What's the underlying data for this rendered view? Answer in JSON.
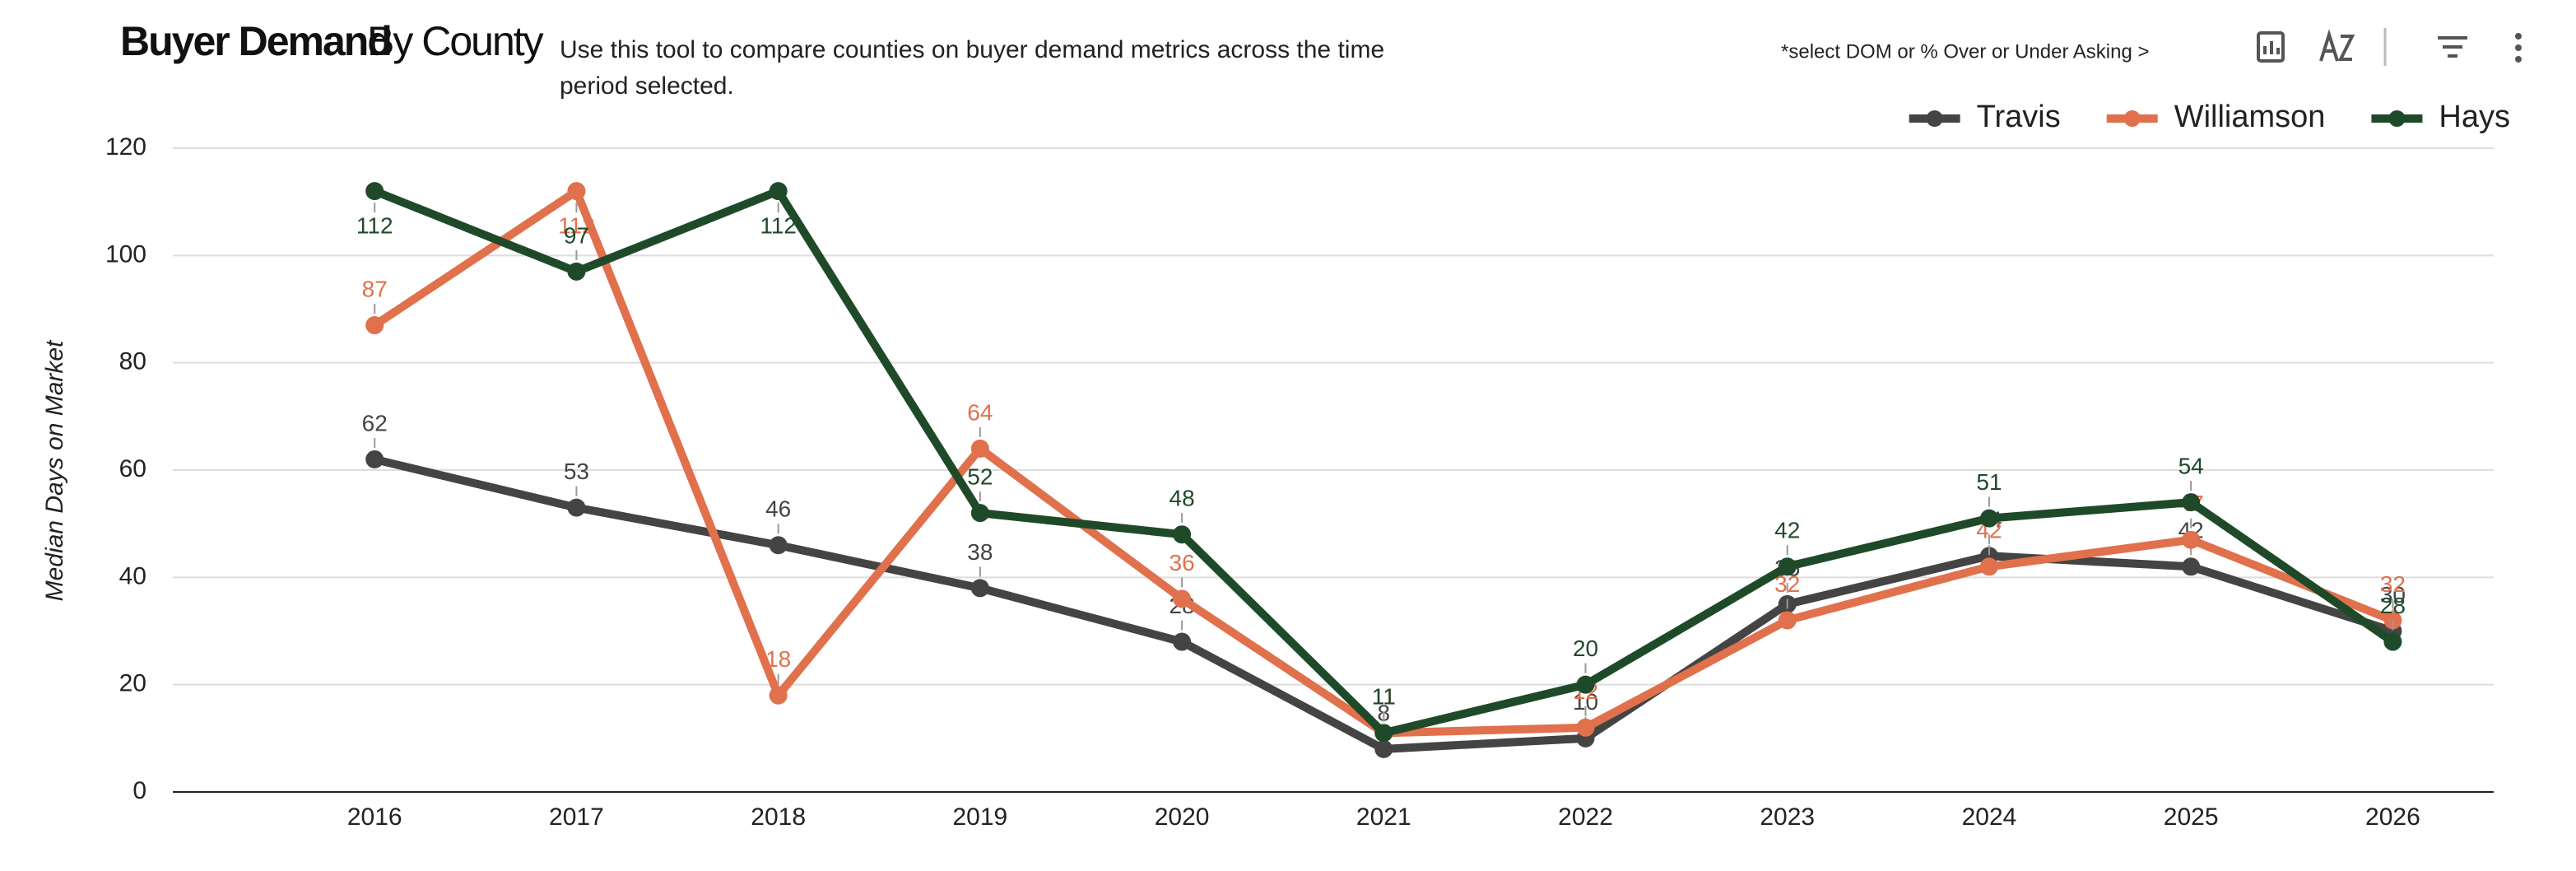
{
  "chart_data": {
    "type": "line",
    "title": {
      "bold": "Buyer Demand",
      "regular": "By County"
    },
    "description": [
      "Use this tool to compare counties on buyer demand metrics across the time",
      "period selected."
    ],
    "note": "*select DOM or % Over or Under Asking >",
    "y_label": "Median Days on Market",
    "categories": [
      "2016",
      "2017",
      "2018",
      "2019",
      "2020",
      "2021",
      "2022",
      "2023",
      "2024",
      "2025",
      "2026"
    ],
    "series": [
      {
        "name": "Travis",
        "color": "#444444",
        "values": [
          62,
          53,
          46,
          38,
          28,
          8,
          10,
          35,
          44,
          42,
          30
        ]
      },
      {
        "name": "Williamson",
        "color": "#e0714c",
        "values": [
          87,
          112,
          18,
          64,
          36,
          11,
          12,
          32,
          42,
          47,
          32
        ]
      },
      {
        "name": "Hays",
        "color": "#1f4a2a",
        "values": [
          112,
          97,
          112,
          52,
          48,
          11,
          20,
          42,
          51,
          54,
          28
        ]
      }
    ],
    "ylim": [
      0,
      120
    ],
    "yticks": [
      0,
      20,
      40,
      60,
      80,
      100,
      120
    ],
    "grid": true,
    "legend": "top-right"
  }
}
